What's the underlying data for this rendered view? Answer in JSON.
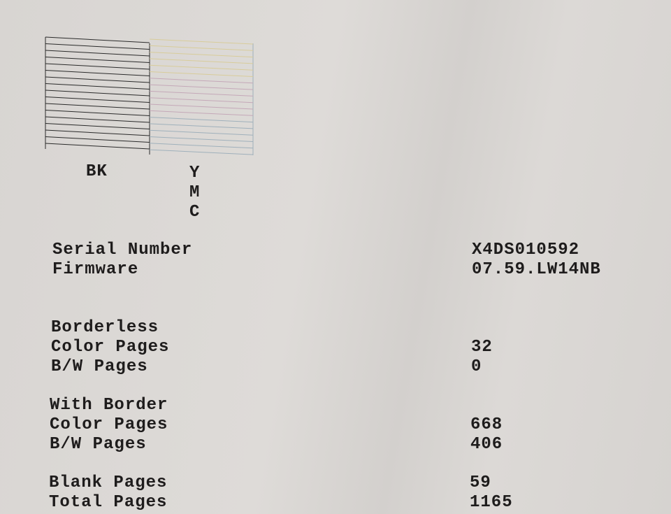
{
  "nozzle_check": {
    "black_label": "BK",
    "color_labels": [
      "Y",
      "M",
      "C"
    ],
    "colors": {
      "black": "#2a2a2a",
      "yellow": "#d8cc9a",
      "magenta": "#c4a8b8",
      "cyan": "#9fb0bb"
    }
  },
  "info": {
    "serial_label": "Serial Number",
    "serial_value": "X4DS010592",
    "firmware_label": "Firmware",
    "firmware_value": "07.59.LW14NB"
  },
  "borderless": {
    "heading": "Borderless",
    "color_label": "Color Pages",
    "color_value": "32",
    "bw_label": "B/W Pages",
    "bw_value": "0"
  },
  "with_border": {
    "heading": "With Border",
    "color_label": "Color Pages",
    "color_value": "668",
    "bw_label": "B/W Pages",
    "bw_value": "406"
  },
  "totals": {
    "blank_label": "Blank Pages",
    "blank_value": "59",
    "total_label": "Total Pages",
    "total_value": "1165"
  }
}
